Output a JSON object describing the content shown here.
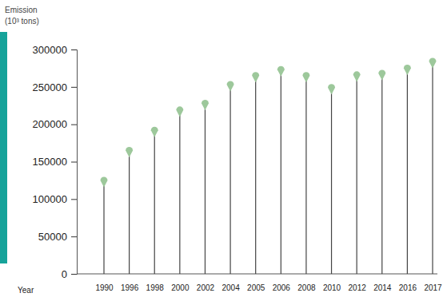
{
  "chart_data": {
    "type": "lollipop",
    "y_label": [
      "Emission",
      "(10³ tons)"
    ],
    "x_label": "Year",
    "categories": [
      "1990",
      "1996",
      "1998",
      "2000",
      "2002",
      "2004",
      "2005",
      "2006",
      "2008",
      "2010",
      "2012",
      "2014",
      "2016",
      "2017"
    ],
    "values": [
      125000,
      165000,
      192000,
      219000,
      228000,
      253000,
      265000,
      273000,
      265000,
      249000,
      266000,
      268000,
      275000,
      284000
    ],
    "color": "#9dc89b",
    "ylim": [
      0,
      300000
    ],
    "yticks": [
      0,
      50000,
      100000,
      150000,
      200000,
      250000,
      300000
    ],
    "grid": false
  }
}
